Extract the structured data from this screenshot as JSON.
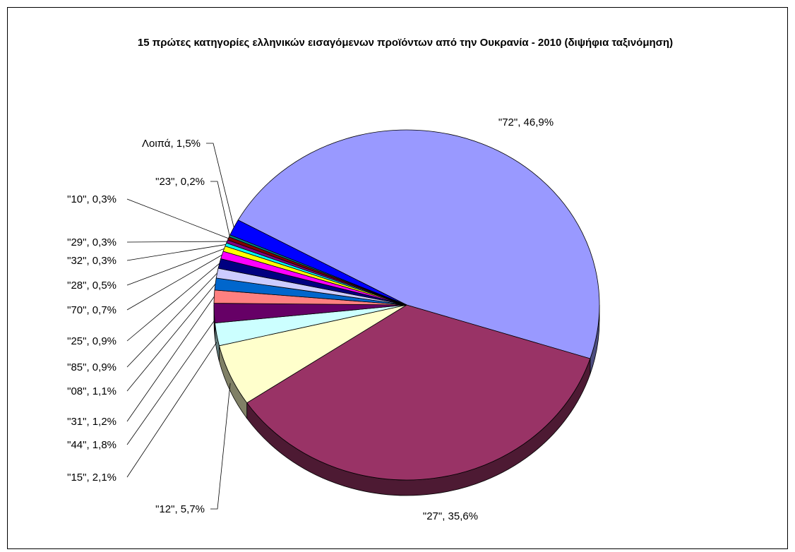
{
  "chart_data": {
    "type": "pie",
    "title": "15 πρώτες κατηγορίες ελληνικών εισαγόμενων προϊόντων από την Ουκρανία - 2010 (διψήφια ταξινόμηση)",
    "series": [
      {
        "values": [
          {
            "label": "\"72\", 46,9%",
            "category": "\"72\"",
            "value": 46.9,
            "color": "#9999ff"
          },
          {
            "label": "\"27\", 35,6%",
            "category": "\"27\"",
            "value": 35.6,
            "color": "#993366"
          },
          {
            "label": "\"12\", 5,7%",
            "category": "\"12\"",
            "value": 5.7,
            "color": "#ffffcc"
          },
          {
            "label": "\"15\", 2,1%",
            "category": "\"15\"",
            "value": 2.1,
            "color": "#ccffff"
          },
          {
            "label": "\"44\", 1,8%",
            "category": "\"44\"",
            "value": 1.8,
            "color": "#660066"
          },
          {
            "label": "\"31\", 1,2%",
            "category": "\"31\"",
            "value": 1.2,
            "color": "#ff8080"
          },
          {
            "label": "\"08\", 1,1%",
            "category": "\"08\"",
            "value": 1.1,
            "color": "#0066cc"
          },
          {
            "label": "\"85\", 0,9%",
            "category": "\"85\"",
            "value": 0.9,
            "color": "#ccccff"
          },
          {
            "label": "\"25\", 0,9%",
            "category": "\"25\"",
            "value": 0.9,
            "color": "#000080"
          },
          {
            "label": "\"70\", 0,7%",
            "category": "\"70\"",
            "value": 0.7,
            "color": "#ff00ff"
          },
          {
            "label": "\"28\", 0,5%",
            "category": "\"28\"",
            "value": 0.5,
            "color": "#ffff00"
          },
          {
            "label": "\"32\", 0,3%",
            "category": "\"32\"",
            "value": 0.3,
            "color": "#00ffff"
          },
          {
            "label": "\"29\", 0,3%",
            "category": "\"29\"",
            "value": 0.3,
            "color": "#800080"
          },
          {
            "label": "\"10\", 0,3%",
            "category": "\"10\"",
            "value": 0.3,
            "color": "#800000"
          },
          {
            "label": "\"23\", 0,2%",
            "category": "\"23\"",
            "value": 0.2,
            "color": "#008080"
          },
          {
            "label": "Λοιπά, 1,5%",
            "category": "Λοιπά",
            "value": 1.5,
            "color": "#0000ff"
          }
        ]
      }
    ],
    "legend": "none",
    "style": "3d-pie"
  }
}
